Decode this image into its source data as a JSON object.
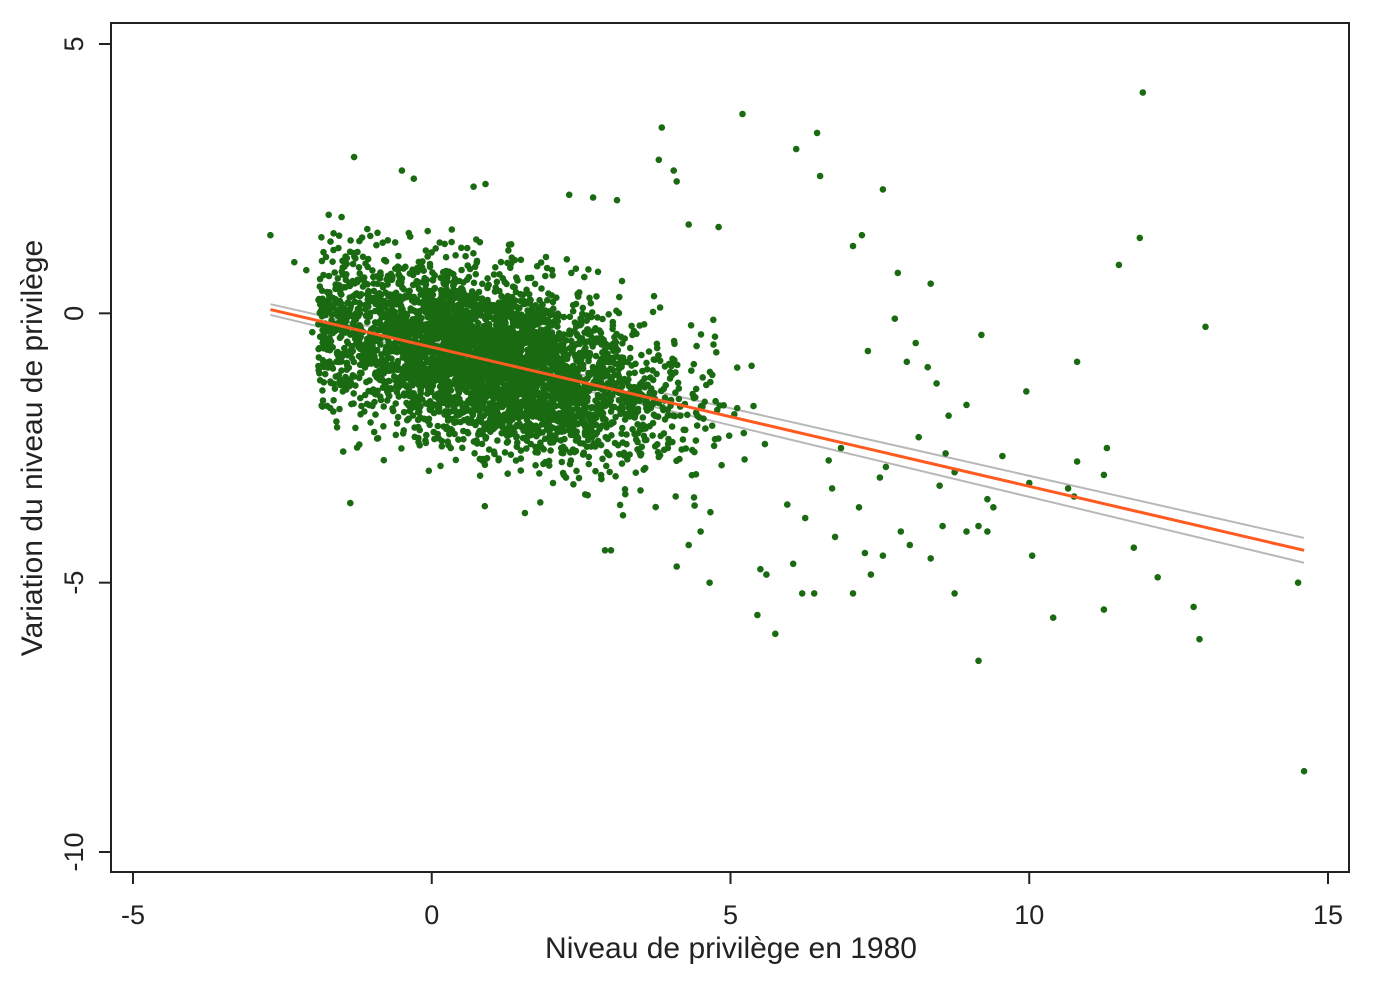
{
  "chart_data": {
    "type": "scatter",
    "title": "",
    "xlabel": "Niveau de privilège en 1980",
    "ylabel": "Variation du niveau de privilège",
    "xlim": [
      -5,
      15
    ],
    "ylim": [
      -10,
      5
    ],
    "xticks": [
      -5,
      0,
      5,
      10,
      15
    ],
    "xtick_labels": [
      "-5",
      "0",
      "5",
      "10",
      "15"
    ],
    "yticks": [
      -10,
      -5,
      0,
      5
    ],
    "ytick_labels": [
      "-10",
      "-5",
      "0",
      "5"
    ],
    "grid": false,
    "legend": "none",
    "colors": {
      "points": "#1a6a12",
      "fit_line": "#ff5a1f",
      "ci_band": "#b8b8b8"
    },
    "fit_line": {
      "x": [
        -2.7,
        14.6
      ],
      "y": [
        0.07,
        -4.4
      ]
    },
    "ci_band": {
      "x": [
        -2.7,
        14.6
      ],
      "upper": [
        0.17,
        -4.17
      ],
      "lower": [
        -0.03,
        -4.63
      ]
    },
    "cluster": {
      "count": 4200,
      "x_mean": 1.0,
      "x_sd": 1.45,
      "y_intercept": -0.65,
      "slope": -0.26,
      "y_sd": 0.78,
      "x_min": -1.9,
      "x_max": 6.8
    },
    "points": [
      [
        -2.7,
        1.45
      ],
      [
        -2.3,
        0.95
      ],
      [
        -2.1,
        0.8
      ],
      [
        -2.0,
        -0.35
      ],
      [
        -1.8,
        0.15
      ],
      [
        -1.3,
        2.9
      ],
      [
        -0.5,
        2.65
      ],
      [
        -0.3,
        2.5
      ],
      [
        0.7,
        2.35
      ],
      [
        0.9,
        2.4
      ],
      [
        2.3,
        2.2
      ],
      [
        2.7,
        2.15
      ],
      [
        3.1,
        2.1
      ],
      [
        3.8,
        2.85
      ],
      [
        3.85,
        3.45
      ],
      [
        4.05,
        2.65
      ],
      [
        4.1,
        2.45
      ],
      [
        4.3,
        1.65
      ],
      [
        4.8,
        1.6
      ],
      [
        5.2,
        3.7
      ],
      [
        6.1,
        3.05
      ],
      [
        6.45,
        3.35
      ],
      [
        6.5,
        2.55
      ],
      [
        7.05,
        1.25
      ],
      [
        7.2,
        1.45
      ],
      [
        7.55,
        2.3
      ],
      [
        7.8,
        0.75
      ],
      [
        8.35,
        0.55
      ],
      [
        7.3,
        -0.7
      ],
      [
        7.75,
        -0.1
      ],
      [
        7.95,
        -0.9
      ],
      [
        8.1,
        -0.55
      ],
      [
        8.3,
        -1.0
      ],
      [
        8.45,
        -1.3
      ],
      [
        8.65,
        -1.9
      ],
      [
        9.2,
        -0.4
      ],
      [
        8.95,
        -1.7
      ],
      [
        8.15,
        -2.3
      ],
      [
        9.95,
        -1.45
      ],
      [
        10.8,
        -0.9
      ],
      [
        11.5,
        0.9
      ],
      [
        11.85,
        1.4
      ],
      [
        11.9,
        4.1
      ],
      [
        12.95,
        -0.25
      ],
      [
        11.3,
        -2.5
      ],
      [
        10.8,
        -2.75
      ],
      [
        11.25,
        -3.0
      ],
      [
        10.75,
        -3.4
      ],
      [
        10.65,
        -3.25
      ],
      [
        10.0,
        -3.15
      ],
      [
        9.3,
        -3.45
      ],
      [
        9.4,
        -3.6
      ],
      [
        9.15,
        -3.95
      ],
      [
        9.3,
        -4.05
      ],
      [
        8.95,
        -4.05
      ],
      [
        8.55,
        -3.95
      ],
      [
        10.05,
        -4.5
      ],
      [
        11.75,
        -4.35
      ],
      [
        12.15,
        -4.9
      ],
      [
        12.75,
        -5.45
      ],
      [
        12.85,
        -6.05
      ],
      [
        11.25,
        -5.5
      ],
      [
        10.4,
        -5.65
      ],
      [
        9.15,
        -6.45
      ],
      [
        8.75,
        -5.2
      ],
      [
        8.35,
        -4.55
      ],
      [
        8.0,
        -4.3
      ],
      [
        7.85,
        -4.05
      ],
      [
        7.55,
        -4.5
      ],
      [
        7.25,
        -4.45
      ],
      [
        7.35,
        -4.85
      ],
      [
        7.05,
        -5.2
      ],
      [
        6.4,
        -5.2
      ],
      [
        6.2,
        -5.2
      ],
      [
        5.75,
        -5.95
      ],
      [
        5.45,
        -5.6
      ],
      [
        5.5,
        -4.75
      ],
      [
        5.6,
        -4.85
      ],
      [
        6.05,
        -4.65
      ],
      [
        6.75,
        -4.15
      ],
      [
        4.65,
        -5.0
      ],
      [
        4.1,
        -4.7
      ],
      [
        4.3,
        -4.3
      ],
      [
        4.5,
        -4.05
      ],
      [
        3.0,
        -4.4
      ],
      [
        2.9,
        -4.4
      ],
      [
        3.2,
        -3.75
      ],
      [
        14.5,
        -5.0
      ],
      [
        14.6,
        -8.5
      ],
      [
        6.85,
        -2.5
      ],
      [
        7.6,
        -2.85
      ],
      [
        8.6,
        -2.6
      ],
      [
        8.5,
        -3.2
      ],
      [
        9.55,
        -2.65
      ],
      [
        8.75,
        -2.95
      ],
      [
        6.7,
        -3.25
      ],
      [
        7.15,
        -3.6
      ],
      [
        7.5,
        -3.05
      ],
      [
        5.95,
        -3.55
      ],
      [
        6.25,
        -3.8
      ]
    ]
  }
}
